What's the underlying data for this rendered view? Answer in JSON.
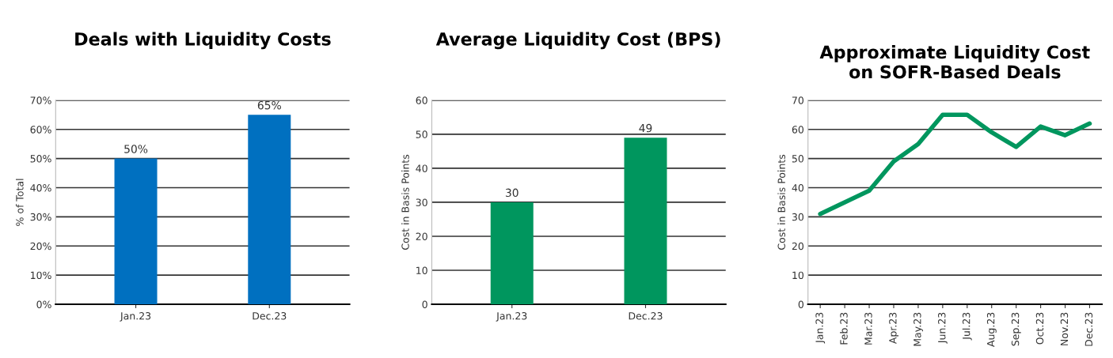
{
  "chart_data": [
    {
      "type": "bar",
      "title": "Deals with Liquidity Costs",
      "ylabel": "% of Total",
      "categories": [
        "Jan.23",
        "Dec.23"
      ],
      "values": [
        50,
        65
      ],
      "value_labels": [
        "50%",
        "65%"
      ],
      "color": "#0070c0",
      "ylim": [
        0,
        70
      ],
      "yticks": [
        {
          "value": 0,
          "label": "0%"
        },
        {
          "value": 10,
          "label": "10%"
        },
        {
          "value": 20,
          "label": "20%"
        },
        {
          "value": 30,
          "label": "30%"
        },
        {
          "value": 40,
          "label": "40%"
        },
        {
          "value": 50,
          "label": "50%"
        },
        {
          "value": 60,
          "label": "60%"
        },
        {
          "value": 70,
          "label": "70%"
        }
      ],
      "grid": "y",
      "legend": false
    },
    {
      "type": "bar",
      "title": "Average Liquidity Cost (BPS)",
      "ylabel": "Cost in Basis Points",
      "categories": [
        "Jan.23",
        "Dec.23"
      ],
      "values": [
        30,
        49
      ],
      "data_labels": true,
      "color": "#00965e",
      "ylim": [
        0,
        60
      ],
      "yticks": [
        0,
        10,
        20,
        30,
        40,
        50,
        60
      ],
      "grid": "y",
      "legend": false
    },
    {
      "type": "line",
      "title": "Approximate Liquidity Cost\non SOFR-Based Deals",
      "ylabel": "Cost in Basis Points",
      "categories": [
        "Jan.23",
        "Feb.23",
        "Mar.23",
        "Apr.23",
        "May.23",
        "Jun.23",
        "Jul.23",
        "Aug.23",
        "Sep.23",
        "Oct.23",
        "Nov.23",
        "Dec.23"
      ],
      "values": [
        31,
        35,
        39,
        49,
        55,
        65,
        65,
        59,
        54,
        61,
        58,
        62
      ],
      "color": "#00965e",
      "ylim": [
        0,
        70
      ],
      "yticks": [
        0,
        10,
        20,
        30,
        40,
        50,
        60,
        70
      ],
      "grid": "y",
      "legend": false,
      "marker": "none",
      "line_style": "solid"
    }
  ]
}
